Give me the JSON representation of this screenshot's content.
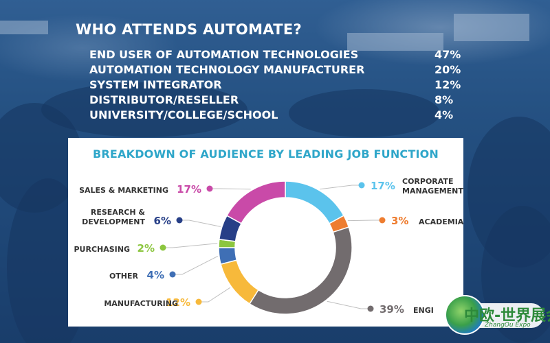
{
  "headline": "WHO ATTENDS AUTOMATE?",
  "attendees": [
    {
      "label": "END USER OF AUTOMATION TECHNOLOGIES",
      "percent": "47%"
    },
    {
      "label": "AUTOMATION TECHNOLOGY MANUFACTURER",
      "percent": "20%"
    },
    {
      "label": "SYSTEM INTEGRATOR",
      "percent": "12%"
    },
    {
      "label": "DISTRIBUTOR/RESELLER",
      "percent": "8%"
    },
    {
      "label": "UNIVERSITY/COLLEGE/SCHOOL",
      "percent": "4%"
    }
  ],
  "chart_data": {
    "type": "pie",
    "donut": true,
    "title": "BREAKDOWN OF AUDIENCE BY LEADING JOB FUNCTION",
    "slices": [
      {
        "label": "CORPORATE MANAGEMENT",
        "value": 17,
        "value_label": "17%",
        "color": "#5bc3ec",
        "side": "right"
      },
      {
        "label": "ACADEMIA",
        "value": 3,
        "value_label": "3%",
        "color": "#ee7d30",
        "side": "right"
      },
      {
        "label": "ENGI",
        "value": 39,
        "value_label": "39%",
        "color": "#726c6e",
        "side": "right"
      },
      {
        "label": "MANUFACTURING",
        "value": 12,
        "value_label": "12%",
        "color": "#f7b93b",
        "side": "left"
      },
      {
        "label": "OTHER",
        "value": 4,
        "value_label": "4%",
        "color": "#3f6fb5",
        "side": "left"
      },
      {
        "label": "PURCHASING",
        "value": 2,
        "value_label": "2%",
        "color": "#8cc63f",
        "side": "left"
      },
      {
        "label": "RESEARCH & DEVELOPMENT",
        "value": 6,
        "value_label": "6%",
        "color": "#273f87",
        "side": "left"
      },
      {
        "label": "SALES & MARKETING",
        "value": 17,
        "value_label": "17%",
        "color": "#c94aa8",
        "side": "left"
      }
    ],
    "start_angle_deg": 0,
    "direction": "clockwise",
    "legend": "callouts"
  },
  "logo": {
    "chinese": "中欧-世界展会",
    "english": "ZhangOu Expo"
  }
}
